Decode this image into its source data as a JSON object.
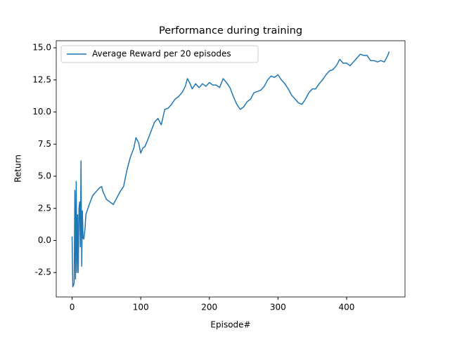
{
  "chart_data": {
    "type": "line",
    "title": "Performance during training",
    "x_label": "Episode#",
    "y_label": "Return",
    "legend": "upper left",
    "grid": false,
    "xlim": [
      -23.1,
      485.1
    ],
    "ylim": [
      -4.4,
      15.55
    ],
    "xticks": [
      0,
      100,
      200,
      300,
      400
    ],
    "yticks": [
      -2.5,
      {
        "value": 0,
        "label": "0.0"
      },
      2.5,
      {
        "value": 5,
        "label": "5.0"
      },
      7.5,
      {
        "value": 10,
        "label": "10.0"
      },
      12.5,
      {
        "value": 15,
        "label": "15.0"
      }
    ],
    "x": [
      0,
      1,
      2,
      3,
      4,
      5,
      6,
      7,
      8,
      9,
      10,
      11,
      12,
      13,
      14,
      15,
      16,
      17,
      18,
      19,
      20,
      25,
      30,
      35,
      40,
      43,
      45,
      50,
      55,
      60,
      65,
      70,
      75,
      80,
      85,
      90,
      93,
      97,
      100,
      103,
      106,
      110,
      115,
      120,
      125,
      130,
      135,
      140,
      145,
      150,
      155,
      160,
      165,
      168,
      172,
      175,
      180,
      185,
      190,
      195,
      200,
      205,
      210,
      215,
      220,
      225,
      230,
      235,
      240,
      245,
      250,
      255,
      260,
      265,
      270,
      275,
      280,
      285,
      290,
      295,
      300,
      305,
      310,
      315,
      320,
      325,
      330,
      335,
      340,
      345,
      350,
      355,
      360,
      365,
      370,
      375,
      380,
      385,
      390,
      395,
      400,
      405,
      410,
      415,
      420,
      425,
      430,
      435,
      440,
      445,
      450,
      455,
      460,
      462
    ],
    "series": [
      {
        "name": "Average Reward per 20 episodes",
        "color": "#1f77b4",
        "values": [
          0.3,
          -3.6,
          -3.5,
          -3.3,
          3.9,
          -3.0,
          4.6,
          -2.5,
          2.0,
          -2.5,
          2.5,
          3.0,
          -0.5,
          6.2,
          -2.0,
          2.3,
          0.2,
          0.1,
          0.5,
          1.0,
          2.0,
          2.8,
          3.5,
          3.8,
          4.1,
          4.2,
          3.8,
          3.2,
          3.0,
          2.8,
          3.3,
          3.8,
          4.2,
          5.5,
          6.5,
          7.2,
          8.0,
          7.6,
          6.8,
          7.2,
          7.3,
          7.8,
          8.5,
          9.2,
          9.5,
          9.0,
          10.2,
          10.3,
          10.6,
          11.0,
          11.2,
          11.5,
          12.0,
          12.6,
          12.2,
          11.8,
          12.2,
          11.9,
          12.2,
          12.0,
          12.3,
          12.1,
          12.1,
          11.9,
          12.6,
          12.3,
          11.9,
          11.2,
          10.6,
          10.2,
          10.4,
          10.8,
          11.0,
          11.5,
          11.6,
          11.7,
          12.0,
          12.5,
          12.8,
          12.7,
          12.9,
          12.5,
          12.2,
          11.8,
          11.3,
          11.0,
          10.7,
          10.6,
          11.0,
          11.5,
          11.8,
          11.8,
          12.2,
          12.5,
          12.9,
          13.2,
          13.3,
          13.6,
          14.1,
          13.8,
          13.8,
          13.6,
          13.9,
          14.2,
          14.5,
          14.4,
          14.4,
          14.0,
          14.0,
          13.9,
          14.0,
          13.9,
          14.4,
          14.7
        ]
      }
    ]
  }
}
